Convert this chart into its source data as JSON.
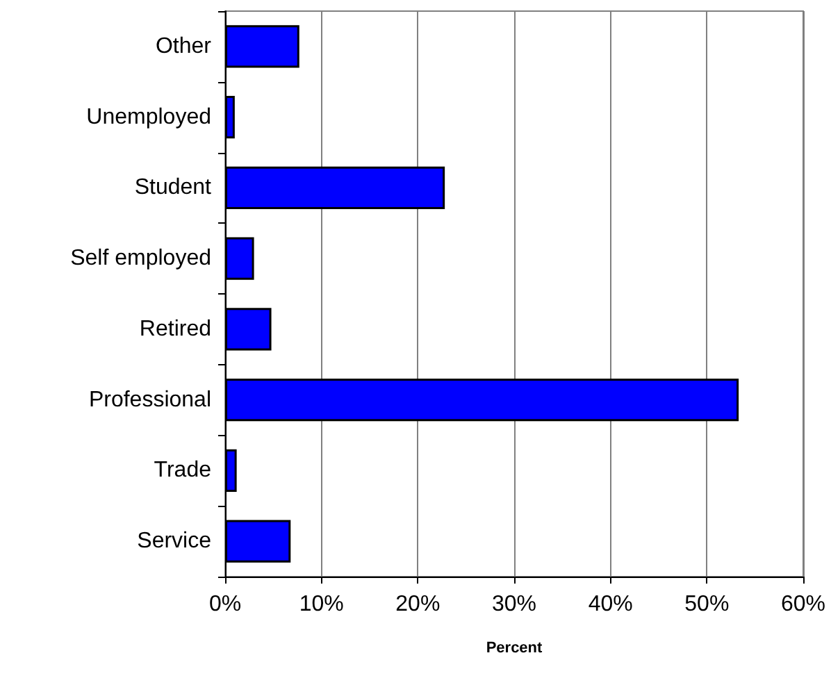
{
  "chart_data": {
    "type": "bar",
    "orientation": "horizontal",
    "xlabel": "Percent",
    "categories": [
      "Other",
      "Unemployed",
      "Student",
      "Self employed",
      "Retired",
      "Professional",
      "Trade",
      "Service"
    ],
    "values": [
      7.7,
      1.0,
      22.8,
      3.0,
      4.8,
      53.3,
      1.2,
      6.8
    ],
    "color": "#0000ff",
    "xlim": [
      0,
      60
    ],
    "xticks": [
      {
        "value": 0,
        "label": "0%"
      },
      {
        "value": 10,
        "label": "10%"
      },
      {
        "value": 20,
        "label": "20%"
      },
      {
        "value": 30,
        "label": "30%"
      },
      {
        "value": 40,
        "label": "40%"
      },
      {
        "value": 50,
        "label": "50%"
      },
      {
        "value": 60,
        "label": "60%"
      }
    ],
    "grid": "x"
  }
}
